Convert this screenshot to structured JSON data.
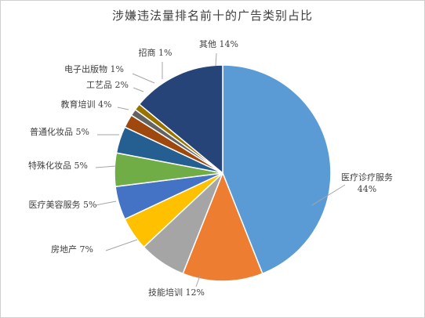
{
  "chart_data": {
    "type": "pie",
    "title": "涉嫌违法量排名前十的广告类别占比",
    "slices": [
      {
        "label": "医疗诊疗服务",
        "value": 44,
        "text": "44%",
        "color": "#5b9bd5"
      },
      {
        "label": "技能培训",
        "value": 12,
        "text": "12%",
        "color": "#ed7d31"
      },
      {
        "label": "房地产",
        "value": 7,
        "text": "7%",
        "color": "#a5a5a5"
      },
      {
        "label": "医疗美容服务",
        "value": 5,
        "text": "5%",
        "color": "#ffc000"
      },
      {
        "label": "特殊化妆品",
        "value": 5,
        "text": "5%",
        "color": "#4472c4"
      },
      {
        "label": "普通化妆品",
        "value": 5,
        "text": "5%",
        "color": "#70ad47"
      },
      {
        "label": "教育培训",
        "value": 4,
        "text": "4%",
        "color": "#255e91"
      },
      {
        "label": "工艺品",
        "value": 2,
        "text": "2%",
        "color": "#9e480e"
      },
      {
        "label": "电子出版物",
        "value": 1,
        "text": "1%",
        "color": "#636363"
      },
      {
        "label": "招商",
        "value": 1,
        "text": "1%",
        "color": "#997300"
      },
      {
        "label": "其他",
        "value": 14,
        "text": "14%",
        "color": "#264478"
      }
    ],
    "legend": "none",
    "data_labels": "outside with leader lines"
  }
}
